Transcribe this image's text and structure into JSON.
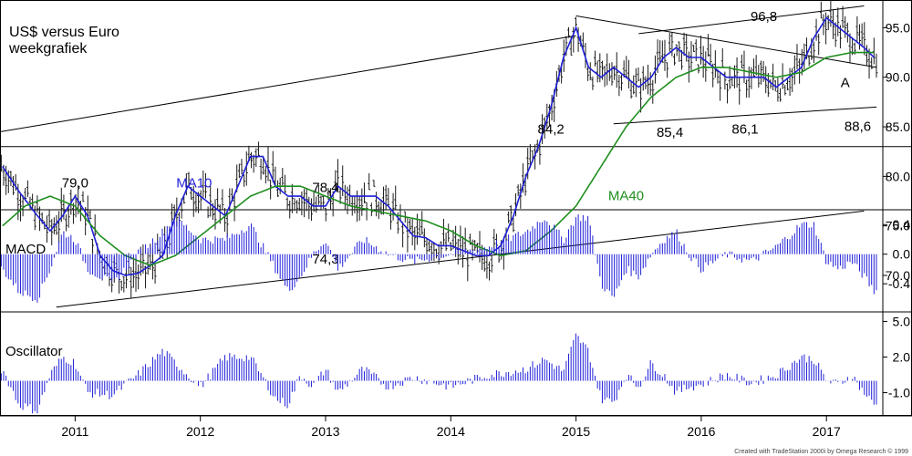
{
  "chart_data": [
    {
      "type": "line",
      "panel": "price",
      "title": "US$ versus Euro",
      "subtitle": "weekgrafiek",
      "x_ticks": [
        "2011",
        "2012",
        "2013",
        "2014",
        "2015",
        "2016",
        "2017"
      ],
      "x_range": [
        2010.4,
        2017.45
      ],
      "y_ticks": [
        "70.0",
        "75.0",
        "80.0",
        "85.0",
        "90.0",
        "95.0"
      ],
      "y_range": [
        66.5,
        97.8
      ],
      "series": [
        {
          "name": "MA10",
          "color": "#1f1fd8",
          "x": [
            2010.42,
            2010.55,
            2010.7,
            2010.8,
            2010.9,
            2011.0,
            2011.1,
            2011.2,
            2011.3,
            2011.4,
            2011.5,
            2011.6,
            2011.7,
            2011.8,
            2011.9,
            2012.0,
            2012.1,
            2012.2,
            2012.3,
            2012.4,
            2012.5,
            2012.6,
            2012.7,
            2012.8,
            2012.9,
            2013.0,
            2013.1,
            2013.2,
            2013.3,
            2013.4,
            2013.5,
            2013.6,
            2013.7,
            2013.8,
            2013.9,
            2014.0,
            2014.1,
            2014.2,
            2014.3,
            2014.4,
            2014.5,
            2014.6,
            2014.7,
            2014.8,
            2014.9,
            2015.0,
            2015.1,
            2015.2,
            2015.3,
            2015.4,
            2015.5,
            2015.6,
            2015.7,
            2015.8,
            2015.9,
            2016.0,
            2016.1,
            2016.2,
            2016.3,
            2016.4,
            2016.5,
            2016.6,
            2016.7,
            2016.8,
            2016.9,
            2017.0,
            2017.1,
            2017.2,
            2017.3,
            2017.38
          ],
          "y": [
            81,
            78.5,
            76,
            74.5,
            76,
            78,
            76,
            72,
            70.5,
            70,
            70.2,
            71,
            72,
            76,
            79,
            78,
            77,
            76,
            79,
            82,
            82,
            79,
            78,
            78,
            77,
            77,
            79,
            78,
            78,
            78,
            77,
            75.5,
            74,
            73.8,
            73,
            73,
            72.5,
            72,
            72,
            73,
            76,
            80,
            83,
            87,
            92,
            95,
            91,
            90,
            91,
            90,
            89,
            90,
            92,
            93,
            92,
            92,
            91,
            90,
            90,
            90,
            90,
            89,
            90,
            91,
            94,
            96,
            95,
            94,
            93,
            92
          ]
        },
        {
          "name": "MA40",
          "color": "#1f8f1f",
          "x": [
            2010.42,
            2010.6,
            2010.8,
            2011.0,
            2011.2,
            2011.4,
            2011.6,
            2011.8,
            2012.0,
            2012.2,
            2012.4,
            2012.6,
            2012.8,
            2013.0,
            2013.2,
            2013.4,
            2013.6,
            2013.8,
            2014.0,
            2014.2,
            2014.4,
            2014.6,
            2014.8,
            2015.0,
            2015.2,
            2015.4,
            2015.6,
            2015.8,
            2016.0,
            2016.2,
            2016.4,
            2016.6,
            2016.8,
            2017.0,
            2017.2,
            2017.38
          ],
          "y": [
            75,
            77,
            78,
            77,
            74,
            72,
            71,
            72,
            74,
            76,
            78,
            79,
            79,
            78,
            77,
            76.5,
            76,
            75.5,
            74.5,
            73,
            72,
            72.5,
            74.5,
            77,
            81,
            85,
            88,
            90,
            91,
            91,
            90.5,
            90,
            90.5,
            92,
            92.5,
            92.5
          ]
        }
      ],
      "trendlines": [
        {
          "x": [
            2010.4,
            2015.0
          ],
          "y": [
            84.5,
            94.2
          ]
        },
        {
          "x": [
            2010.85,
            2017.3
          ],
          "y": [
            66.8,
            76.5
          ]
        },
        {
          "x": [
            2015.0,
            2017.4
          ],
          "y": [
            96.2,
            91.0
          ]
        },
        {
          "x": [
            2015.5,
            2017.3
          ],
          "y": [
            94.4,
            97.2
          ]
        },
        {
          "x": [
            2015.3,
            2017.4
          ],
          "y": [
            85.3,
            87.0
          ]
        }
      ],
      "horizontal_line": 83,
      "annotations": [
        {
          "text": "79,0",
          "x": 2011.0,
          "y": 78.9
        },
        {
          "text": "78,4",
          "x": 2013.0,
          "y": 78.4
        },
        {
          "text": "74,3",
          "x": 2013.0,
          "y": 71.2
        },
        {
          "text": "84,2",
          "x": 2014.8,
          "y": 84.3
        },
        {
          "text": "85,4",
          "x": 2015.75,
          "y": 84.0
        },
        {
          "text": "86,1",
          "x": 2016.35,
          "y": 84.3
        },
        {
          "text": "88,6",
          "x": 2017.25,
          "y": 84.6
        },
        {
          "text": "96,8",
          "x": 2016.5,
          "y": 95.7
        },
        {
          "text": "A",
          "x": 2017.15,
          "y": 89.0
        },
        {
          "text": "MA10",
          "x": 2011.95,
          "y": 78.9
        },
        {
          "text": "MA40",
          "x": 2015.4,
          "y": 77.6
        }
      ]
    },
    {
      "type": "bar",
      "panel": "macd",
      "title": "MACD",
      "color": "#1f1fd8",
      "y_ticks": [
        "0.4",
        "0.0",
        "-0.4"
      ],
      "y_range": [
        -0.78,
        0.6
      ],
      "knots_x": [
        2010.42,
        2010.55,
        2010.7,
        2010.8,
        2010.9,
        2011.0,
        2011.1,
        2011.3,
        2011.5,
        2011.7,
        2011.8,
        2012.0,
        2012.2,
        2012.4,
        2012.6,
        2012.7,
        2012.8,
        2012.9,
        2013.0,
        2013.1,
        2013.3,
        2013.5,
        2013.7,
        2014.0,
        2014.3,
        2014.6,
        2014.75,
        2014.9,
        2015.0,
        2015.1,
        2015.2,
        2015.3,
        2015.4,
        2015.5,
        2015.6,
        2015.7,
        2015.8,
        2015.9,
        2016.0,
        2016.2,
        2016.4,
        2016.6,
        2016.8,
        2016.9,
        2017.0,
        2017.1,
        2017.2,
        2017.3,
        2017.38
      ],
      "knots_y": [
        -0.2,
        -0.5,
        -0.6,
        -0.2,
        0.3,
        0.2,
        -0.2,
        -0.4,
        0.0,
        0.3,
        0.5,
        0.2,
        0.2,
        0.4,
        -0.2,
        -0.5,
        -0.3,
        0.0,
        0.2,
        -0.2,
        0.2,
        0.0,
        -0.1,
        0.0,
        0.1,
        0.3,
        0.5,
        0.2,
        0.5,
        0.5,
        -0.4,
        -0.6,
        -0.2,
        -0.3,
        0.0,
        0.2,
        0.3,
        0.0,
        -0.2,
        0.0,
        -0.1,
        0.1,
        0.4,
        0.4,
        -0.1,
        -0.2,
        -0.1,
        -0.3,
        -0.5
      ]
    },
    {
      "type": "bar",
      "panel": "oscillator",
      "title": "Oscillator",
      "color": "#1f1fd8",
      "y_ticks": [
        "5.0",
        "2.0",
        "-1.0"
      ],
      "y_range": [
        -2.8,
        5.8
      ],
      "knots_x": [
        2010.42,
        2010.55,
        2010.7,
        2010.8,
        2010.9,
        2011.0,
        2011.1,
        2011.3,
        2011.5,
        2011.7,
        2011.8,
        2012.0,
        2012.2,
        2012.4,
        2012.6,
        2012.7,
        2012.8,
        2012.9,
        2013.0,
        2013.1,
        2013.3,
        2013.5,
        2013.7,
        2014.0,
        2014.3,
        2014.6,
        2014.75,
        2014.9,
        2015.0,
        2015.1,
        2015.2,
        2015.3,
        2015.4,
        2015.5,
        2015.6,
        2015.7,
        2015.8,
        2015.9,
        2016.0,
        2016.2,
        2016.4,
        2016.6,
        2016.8,
        2016.9,
        2017.0,
        2017.1,
        2017.2,
        2017.3,
        2017.38
      ],
      "knots_y": [
        1.0,
        -2.0,
        -2.5,
        0.5,
        2.0,
        1.5,
        -1.0,
        -1.2,
        0.5,
        2.5,
        1.5,
        -0.5,
        2.0,
        2.0,
        -1.5,
        -2.0,
        0.5,
        -0.5,
        1.0,
        -1.0,
        1.0,
        -0.5,
        0.3,
        -0.5,
        0.5,
        1.0,
        1.8,
        0.8,
        3.8,
        2.5,
        -1.5,
        -1.8,
        0.5,
        -0.5,
        1.5,
        0.5,
        -1.0,
        -0.5,
        -0.3,
        0.5,
        -0.2,
        0.5,
        2.0,
        1.8,
        0.0,
        -0.3,
        0.5,
        -1.0,
        -2.0
      ]
    }
  ],
  "footer": {
    "credit": "Created with TradeStation 2000i by Omega Research © 1999"
  }
}
